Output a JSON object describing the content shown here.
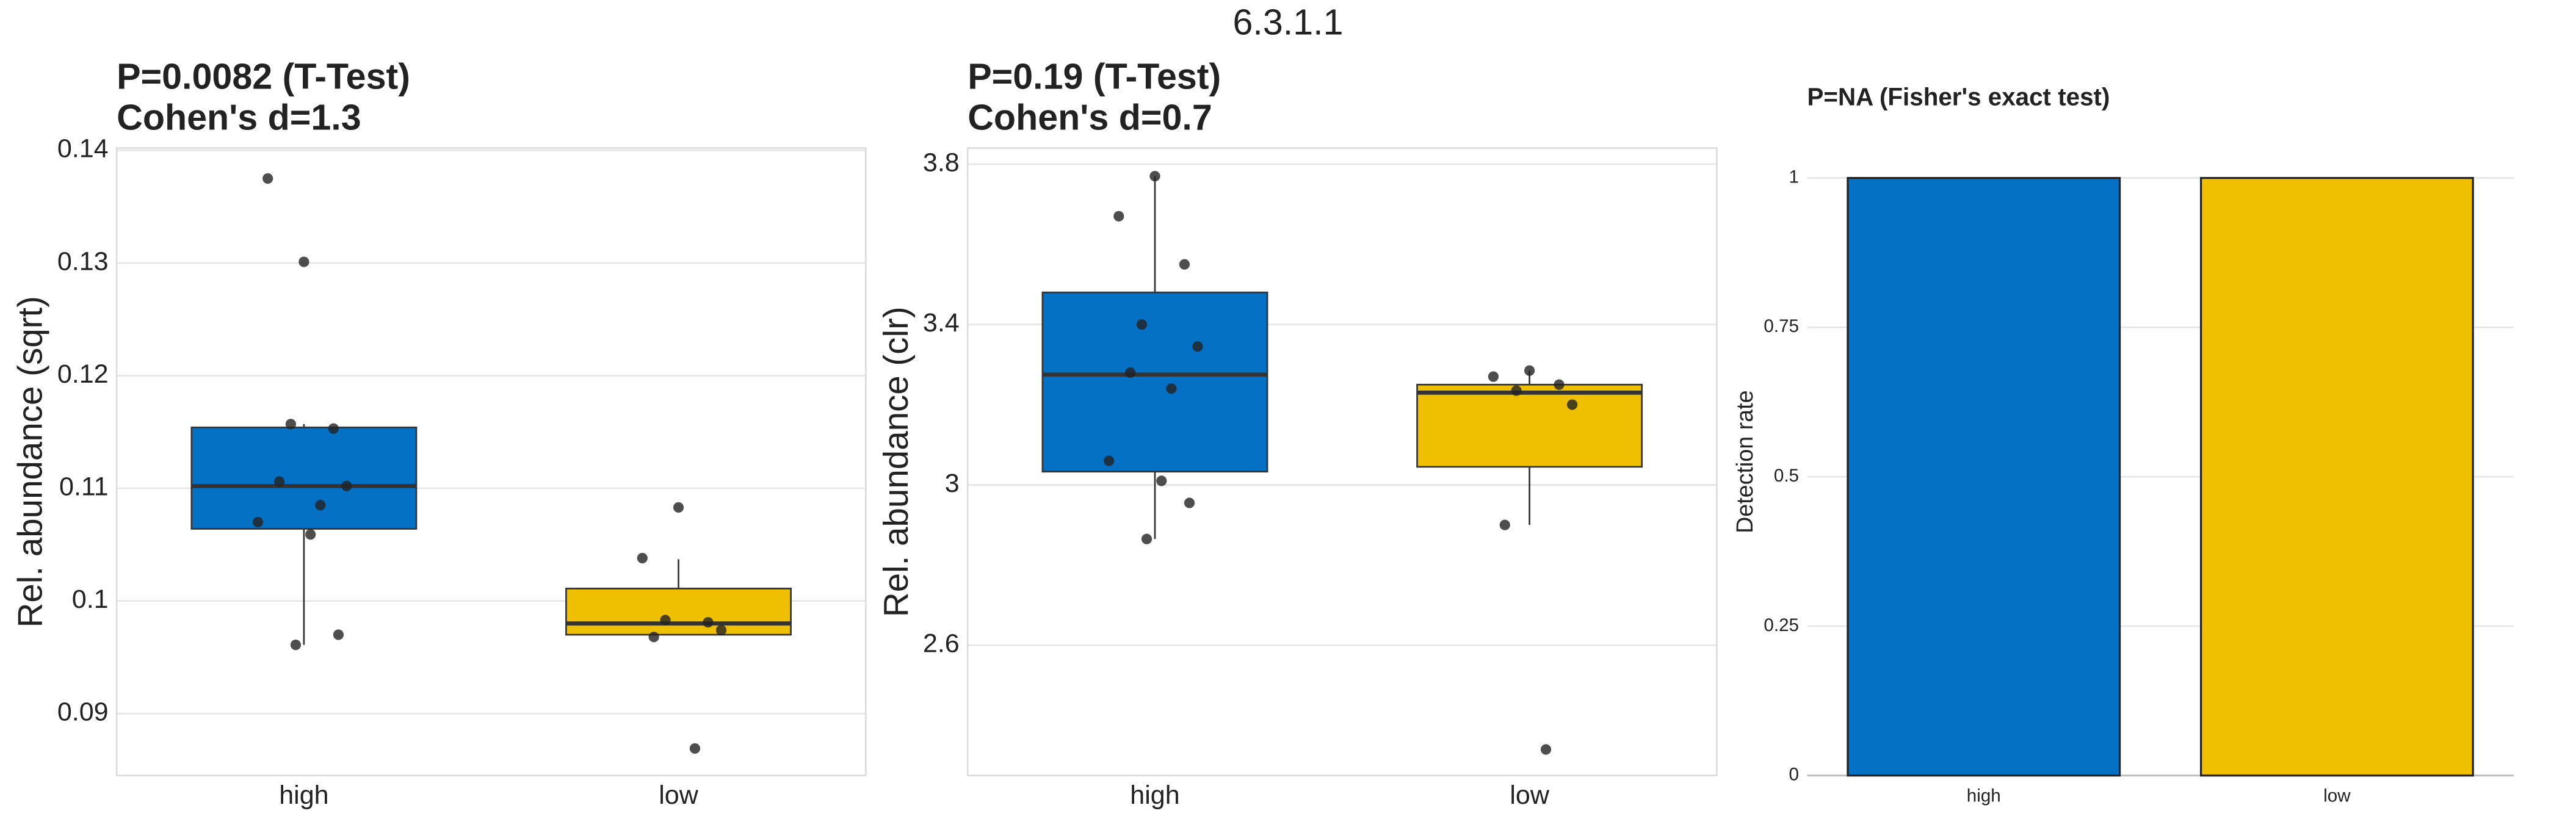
{
  "title": "6.3.1.1",
  "chart_data": [
    {
      "type": "box",
      "title": "P=0.0082 (T-Test)",
      "subtitle": "Cohen's d=1.3",
      "y_label": "Rel. abundance (sqrt)",
      "categories": [
        "high",
        "low"
      ],
      "ylim": [
        0.0845,
        0.1402
      ],
      "yticks": [
        0.09,
        0.1,
        0.11,
        0.12,
        0.13,
        0.14
      ],
      "grid": true,
      "boxes": [
        {
          "color": "#0571c4",
          "whisker_low": 0.0961,
          "q1": 0.1064,
          "median": 0.1102,
          "q3": 0.1154,
          "whisker_high": 0.1157,
          "points": [
            0.1301,
            0.1375,
            0.1153,
            0.1157,
            0.1102,
            0.1106,
            0.1085,
            0.107,
            0.1059,
            0.097,
            0.0961
          ]
        },
        {
          "color": "#efc000",
          "whisker_low": 0.097,
          "q1": 0.097,
          "median": 0.098,
          "q3": 0.1011,
          "whisker_high": 0.1037,
          "points": [
            0.1083,
            0.1038,
            0.0981,
            0.0983,
            0.0974,
            0.0968,
            0.0869
          ]
        }
      ]
    },
    {
      "type": "box",
      "title": "P=0.19 (T-Test)",
      "subtitle": "Cohen's d=0.7",
      "y_label": "Rel. abundance (clr)",
      "categories": [
        "high",
        "low"
      ],
      "ylim": [
        2.275,
        3.84
      ],
      "yticks": [
        2.6,
        3,
        3.4,
        3.8
      ],
      "grid": true,
      "boxes": [
        {
          "color": "#0571c4",
          "whisker_low": 2.865,
          "q1": 3.033,
          "median": 3.275,
          "q3": 3.48,
          "whisker_high": 3.77,
          "points": [
            3.77,
            3.67,
            3.55,
            3.4,
            3.345,
            3.28,
            3.24,
            3.06,
            3.01,
            2.955,
            2.865
          ]
        },
        {
          "color": "#efc000",
          "whisker_low": 2.9,
          "q1": 3.045,
          "median": 3.23,
          "q3": 3.25,
          "whisker_high": 3.285,
          "points": [
            3.285,
            3.27,
            3.25,
            3.235,
            3.2,
            2.9,
            2.34
          ]
        }
      ]
    },
    {
      "type": "bar",
      "title": "P=NA (Fisher's exact test)",
      "y_label": "Detection rate",
      "categories": [
        "high",
        "low"
      ],
      "values": [
        1,
        1
      ],
      "colors": [
        "#0571c4",
        "#efc000"
      ],
      "ylim": [
        0,
        1.05
      ],
      "yticks": [
        0,
        0.25,
        0.5,
        0.75,
        1
      ],
      "grid": true
    }
  ]
}
